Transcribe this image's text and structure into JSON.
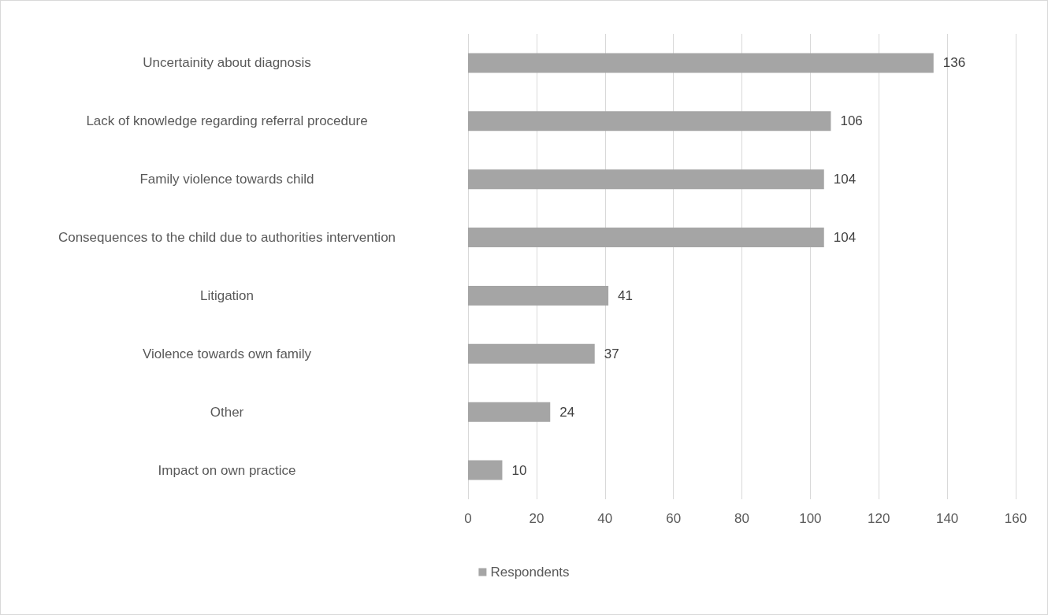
{
  "chart_data": {
    "type": "bar",
    "orientation": "horizontal",
    "categories": [
      "Uncertainity about diagnosis",
      "Lack of knowledge regarding referral procedure",
      "Family violence towards child",
      "Consequences to the child due to authorities intervention",
      "Litigation",
      "Violence towards own family",
      "Other",
      "Impact on own practice"
    ],
    "series": [
      {
        "name": "Respondents",
        "color": "#a5a5a5",
        "values": [
          136,
          106,
          104,
          104,
          41,
          37,
          24,
          10
        ]
      }
    ],
    "xlim": [
      0,
      160
    ],
    "xticks": [
      0,
      20,
      40,
      60,
      80,
      100,
      120,
      140,
      160
    ],
    "grid": "x",
    "legend": "bottom",
    "data_labels": true
  }
}
